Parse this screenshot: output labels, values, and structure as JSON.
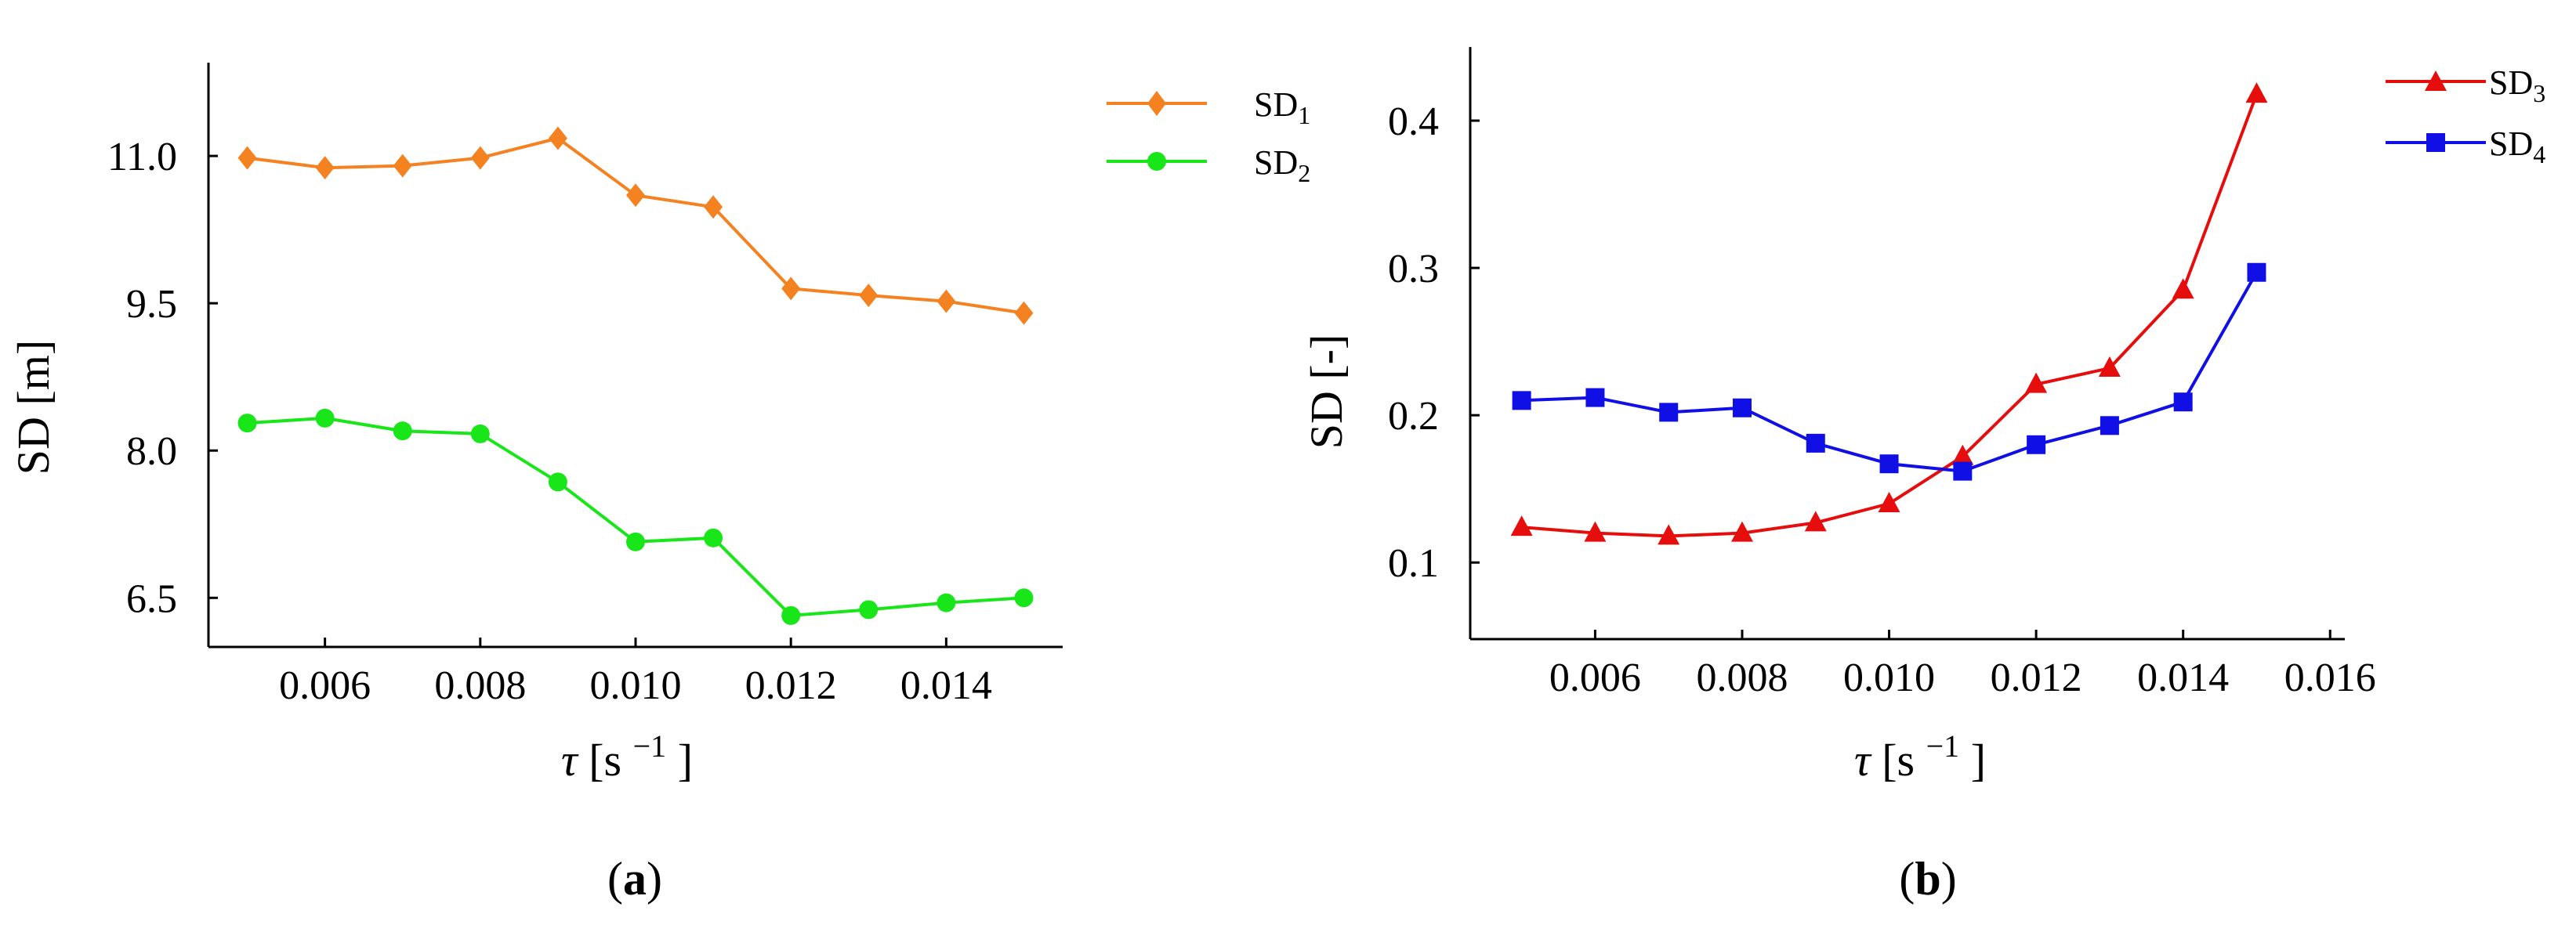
{
  "chart_data": [
    {
      "type": "line",
      "panel_label": {
        "open": "(",
        "letter": "a",
        "close": ")"
      },
      "xlabel": {
        "symbol": "τ",
        "unit_open": "[s",
        "unit_exp": "−1",
        "unit_close": "]"
      },
      "ylabel": "SD [m]",
      "xlim": [
        0.0045,
        0.0155
      ],
      "ylim": [
        6.0,
        11.95
      ],
      "xticks": [
        0.006,
        0.008,
        0.01,
        0.012,
        0.014
      ],
      "xtick_labels": [
        "0.006",
        "0.008",
        "0.010",
        "0.012",
        "0.014"
      ],
      "yticks": [
        6.5,
        8.0,
        9.5,
        11.0
      ],
      "ytick_labels": [
        "6.5",
        "8.0",
        "9.5",
        "11.0"
      ],
      "legend_position": "right",
      "x": [
        0.005,
        0.006,
        0.007,
        0.008,
        0.009,
        0.01,
        0.011,
        0.012,
        0.013,
        0.014,
        0.015
      ],
      "series": [
        {
          "name": "SD",
          "sub": "1",
          "marker": "diamond",
          "color": "#f58220",
          "values": [
            10.98,
            10.88,
            10.9,
            10.98,
            11.18,
            10.6,
            10.48,
            9.65,
            9.58,
            9.52,
            9.4
          ]
        },
        {
          "name": "SD",
          "sub": "2",
          "marker": "circle",
          "color": "#19e619",
          "values": [
            8.28,
            8.33,
            8.2,
            8.17,
            7.68,
            7.07,
            7.11,
            6.32,
            6.38,
            6.45,
            6.5
          ]
        }
      ]
    },
    {
      "type": "line",
      "panel_label": {
        "open": "(",
        "letter": "b",
        "close": ")"
      },
      "xlabel": {
        "symbol": "τ",
        "unit_open": "[s",
        "unit_exp": "−1",
        "unit_close": "]"
      },
      "ylabel": "SD [-]",
      "xlim": [
        0.0043,
        0.0162
      ],
      "ylim": [
        0.048,
        0.45
      ],
      "xticks": [
        0.006,
        0.008,
        0.01,
        0.012,
        0.014,
        0.016
      ],
      "xtick_labels": [
        "0.006",
        "0.008",
        "0.010",
        "0.012",
        "0.014",
        "0.016"
      ],
      "yticks": [
        0.1,
        0.2,
        0.3,
        0.4
      ],
      "ytick_labels": [
        "0.1",
        "0.2",
        "0.3",
        "0.4"
      ],
      "legend_position": "top-right",
      "x": [
        0.005,
        0.006,
        0.007,
        0.008,
        0.009,
        0.01,
        0.011,
        0.012,
        0.013,
        0.014,
        0.015
      ],
      "series": [
        {
          "name": "SD",
          "sub": "3",
          "marker": "triangle",
          "color": "#e60d0d",
          "values": [
            0.124,
            0.12,
            0.118,
            0.12,
            0.127,
            0.14,
            0.172,
            0.221,
            0.232,
            0.285,
            0.418
          ]
        },
        {
          "name": "SD",
          "sub": "4",
          "marker": "square",
          "color": "#1010e6",
          "values": [
            0.21,
            0.212,
            0.202,
            0.205,
            0.181,
            0.167,
            0.162,
            0.18,
            0.193,
            0.209,
            0.297
          ]
        }
      ]
    }
  ]
}
